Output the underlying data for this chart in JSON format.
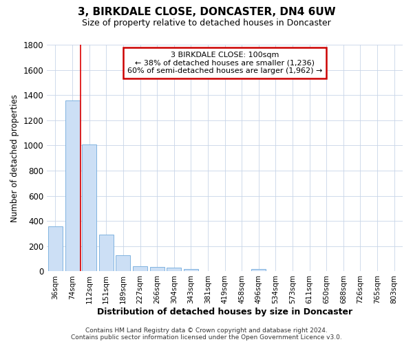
{
  "title": "3, BIRKDALE CLOSE, DONCASTER, DN4 6UW",
  "subtitle": "Size of property relative to detached houses in Doncaster",
  "xlabel": "Distribution of detached houses by size in Doncaster",
  "ylabel": "Number of detached properties",
  "categories": [
    "36sqm",
    "74sqm",
    "112sqm",
    "151sqm",
    "189sqm",
    "227sqm",
    "266sqm",
    "304sqm",
    "343sqm",
    "381sqm",
    "419sqm",
    "458sqm",
    "496sqm",
    "534sqm",
    "573sqm",
    "611sqm",
    "650sqm",
    "688sqm",
    "726sqm",
    "765sqm",
    "803sqm"
  ],
  "values": [
    355,
    1360,
    1010,
    290,
    130,
    42,
    35,
    28,
    20,
    0,
    0,
    0,
    20,
    0,
    0,
    0,
    0,
    0,
    0,
    0,
    0
  ],
  "bar_color": "#ccdff5",
  "bar_edge_color": "#7fb3e0",
  "vline_x": 1.5,
  "vline_color": "#dd0000",
  "ylim": [
    0,
    1800
  ],
  "yticks": [
    0,
    200,
    400,
    600,
    800,
    1000,
    1200,
    1400,
    1600,
    1800
  ],
  "annotation_text": "3 BIRKDALE CLOSE: 100sqm\n← 38% of detached houses are smaller (1,236)\n60% of semi-detached houses are larger (1,962) →",
  "annotation_box_facecolor": "#ffffff",
  "annotation_box_edgecolor": "#cc0000",
  "footer_line1": "Contains HM Land Registry data © Crown copyright and database right 2024.",
  "footer_line2": "Contains public sector information licensed under the Open Government Licence v3.0.",
  "bg_color": "#ffffff",
  "plot_bg_color": "#ffffff",
  "grid_color": "#c8d4e8"
}
